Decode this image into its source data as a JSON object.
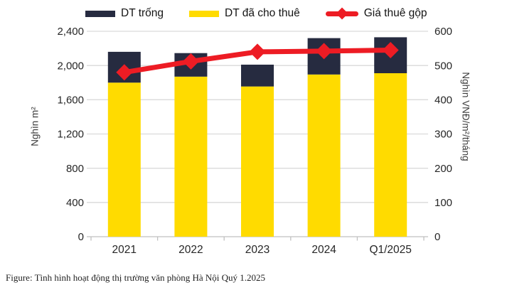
{
  "legend": [
    {
      "label": "DT trống",
      "color": "#262B40",
      "marker": "bar"
    },
    {
      "label": "DT đã cho thuê",
      "color": "#FFDB00",
      "marker": "bar"
    },
    {
      "label": "Giá thuê gộp",
      "color": "#ED1C24",
      "marker": "line-diamond"
    }
  ],
  "chart_data": {
    "type": "bar+line",
    "categories": [
      "2021",
      "2022",
      "2023",
      "2024",
      "Q1/2025"
    ],
    "series": [
      {
        "name": "DT trống",
        "role": "bar-vacant",
        "axis": "left",
        "color": "#262B40",
        "values": [
          360,
          275,
          255,
          425,
          420
        ]
      },
      {
        "name": "DT đã cho thuê",
        "role": "bar-leased",
        "axis": "left",
        "color": "#FFDB00",
        "values": [
          1800,
          1870,
          1755,
          1895,
          1910
        ]
      },
      {
        "name": "Giá thuê gộp",
        "role": "line",
        "axis": "right",
        "color": "#ED1C24",
        "values": [
          480,
          512,
          540,
          542,
          545
        ]
      }
    ],
    "stacked": true,
    "stack_bottom_to_top": [
      "DT đã cho thuê",
      "DT trống"
    ],
    "bar_totals": [
      2160,
      2145,
      2010,
      2320,
      2330
    ],
    "left_axis": {
      "title": "Nghìn m²",
      "ticks": [
        "2,400",
        "2,000",
        "1,600",
        "1,200",
        "800",
        "400",
        "0"
      ],
      "min": 0,
      "max": 2400
    },
    "right_axis": {
      "title": "Nghìn VNĐ/m²/tháng",
      "ticks": [
        "600",
        "500",
        "400",
        "300",
        "200",
        "100",
        "0"
      ],
      "min": 0,
      "max": 600
    },
    "grid": true,
    "legend_position": "top"
  },
  "caption": "Figure: Tình hình hoạt động thị trường văn phòng Hà Nội Quý 1.2025",
  "colors": {
    "vacant_bar": "#262B40",
    "leased_bar": "#FFDB00",
    "rent_line": "#ED1C24",
    "gridline": "#DADADA",
    "axis_line": "#C0C0C0",
    "tick_text": "#262626",
    "background": "#FFFFFF"
  }
}
